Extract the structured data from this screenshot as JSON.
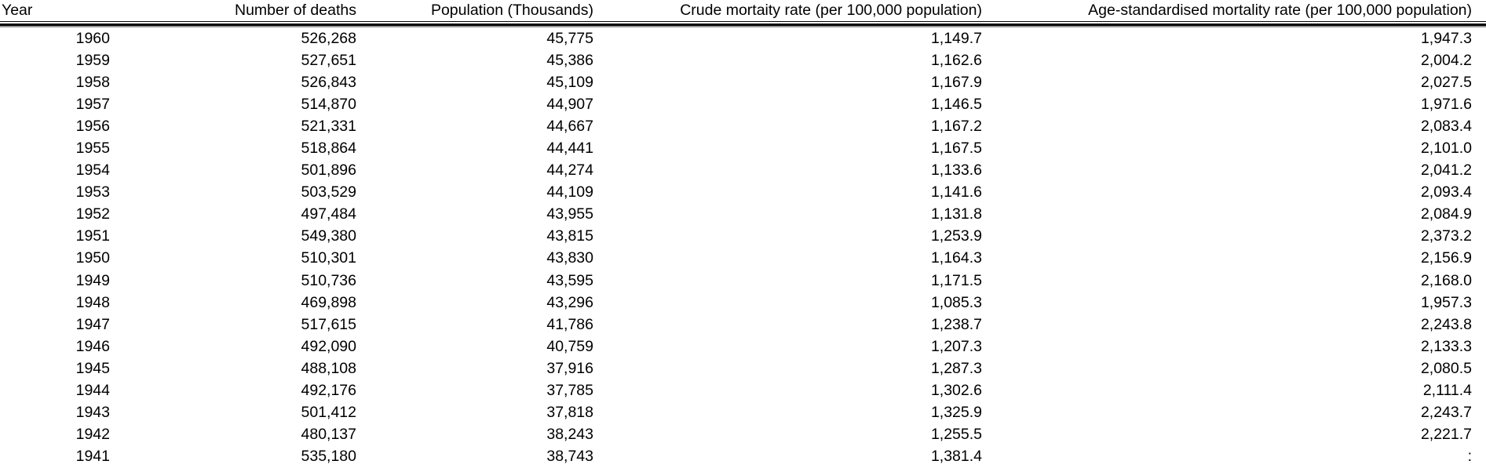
{
  "table": {
    "columns": [
      {
        "label": "Year"
      },
      {
        "label": "Number of deaths"
      },
      {
        "label": "Population (Thousands)"
      },
      {
        "label": "Crude mortaity rate (per 100,000 population)"
      },
      {
        "label": "Age-standardised mortality rate (per 100,000 population)"
      }
    ],
    "no_data_symbol": ":",
    "rows": [
      [
        "1960",
        "526,268",
        "45,775",
        "1,149.7",
        "1,947.3"
      ],
      [
        "1959",
        "527,651",
        "45,386",
        "1,162.6",
        "2,004.2"
      ],
      [
        "1958",
        "526,843",
        "45,109",
        "1,167.9",
        "2,027.5"
      ],
      [
        "1957",
        "514,870",
        "44,907",
        "1,146.5",
        "1,971.6"
      ],
      [
        "1956",
        "521,331",
        "44,667",
        "1,167.2",
        "2,083.4"
      ],
      [
        "1955",
        "518,864",
        "44,441",
        "1,167.5",
        "2,101.0"
      ],
      [
        "1954",
        "501,896",
        "44,274",
        "1,133.6",
        "2,041.2"
      ],
      [
        "1953",
        "503,529",
        "44,109",
        "1,141.6",
        "2,093.4"
      ],
      [
        "1952",
        "497,484",
        "43,955",
        "1,131.8",
        "2,084.9"
      ],
      [
        "1951",
        "549,380",
        "43,815",
        "1,253.9",
        "2,373.2"
      ],
      [
        "1950",
        "510,301",
        "43,830",
        "1,164.3",
        "2,156.9"
      ],
      [
        "1949",
        "510,736",
        "43,595",
        "1,171.5",
        "2,168.0"
      ],
      [
        "1948",
        "469,898",
        "43,296",
        "1,085.3",
        "1,957.3"
      ],
      [
        "1947",
        "517,615",
        "41,786",
        "1,238.7",
        "2,243.8"
      ],
      [
        "1946",
        "492,090",
        "40,759",
        "1,207.3",
        "2,133.3"
      ],
      [
        "1945",
        "488,108",
        "37,916",
        "1,287.3",
        "2,080.5"
      ],
      [
        "1944",
        "492,176",
        "37,785",
        "1,302.6",
        "2,111.4"
      ],
      [
        "1943",
        "501,412",
        "37,818",
        "1,325.9",
        "2,243.7"
      ],
      [
        "1942",
        "480,137",
        "38,243",
        "1,255.5",
        "2,221.7"
      ],
      [
        "1941",
        "535,180",
        "38,743",
        "1,381.4",
        ":"
      ]
    ]
  },
  "colors": {
    "text": "#000000",
    "background": "#ffffff",
    "header_rule_black": "#000000",
    "header_rule_gray": "#9a9a9a"
  }
}
